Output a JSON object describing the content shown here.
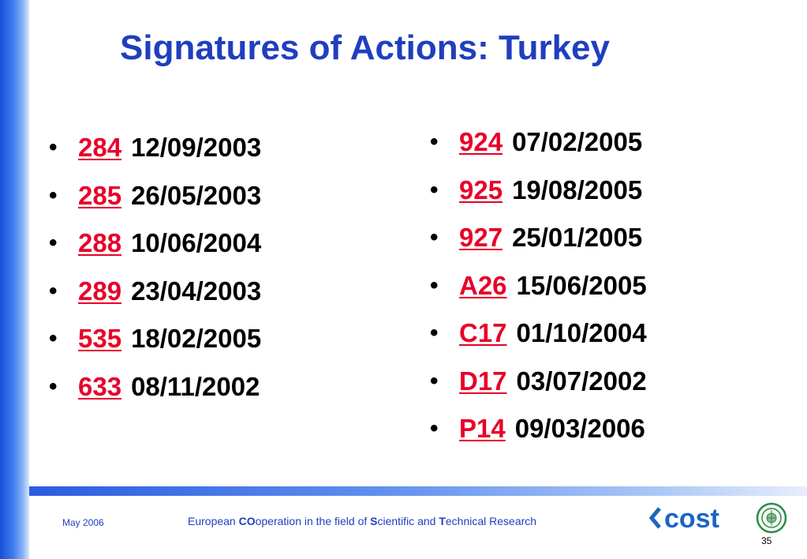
{
  "slide": {
    "title": "Signatures of Actions: Turkey",
    "bullet_char": "•"
  },
  "left_list": [
    {
      "code": "284",
      "date": "12/09/2003"
    },
    {
      "code": "285",
      "date": "26/05/2003"
    },
    {
      "code": "288",
      "date": "10/06/2004"
    },
    {
      "code": "289",
      "date": "23/04/2003"
    },
    {
      "code": "535",
      "date": "18/02/2005"
    },
    {
      "code": "633",
      "date": "08/11/2002"
    }
  ],
  "right_list": [
    {
      "code": "924",
      "date": "07/02/2005"
    },
    {
      "code": "925",
      "date": "19/08/2005"
    },
    {
      "code": "927",
      "date": "25/01/2005"
    },
    {
      "code": "A26",
      "date": "15/06/2005"
    },
    {
      "code": "C17",
      "date": "01/10/2004"
    },
    {
      "code": "D17",
      "date": "03/07/2002"
    },
    {
      "code": "P14",
      "date": "09/03/2006"
    }
  ],
  "footer": {
    "date": "May 2006",
    "org_parts": [
      {
        "text": "European ",
        "bold": false
      },
      {
        "text": "CO",
        "bold": true
      },
      {
        "text": "operation in the field of ",
        "bold": false
      },
      {
        "text": "S",
        "bold": true
      },
      {
        "text": "cientific and ",
        "bold": false
      },
      {
        "text": "T",
        "bold": true
      },
      {
        "text": "echnical Research",
        "bold": false
      }
    ],
    "page_number": "35",
    "logo_text": "cost"
  },
  "colors": {
    "title": "#1f3fbf",
    "link": "#e8002a",
    "accent": "#2d5be0",
    "logo": "#1a66c2",
    "seal": "#2e8a4a"
  },
  "icons": [
    "cost-logo",
    "university-seal-icon"
  ]
}
